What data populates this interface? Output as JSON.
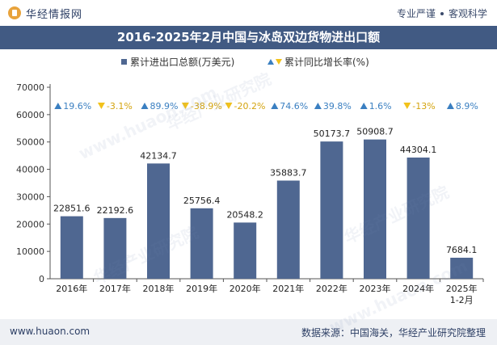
{
  "header": {
    "brand": "华经情报网",
    "tagline_1": "专业严谨",
    "tagline_2": "客观科学"
  },
  "title": "2016-2025年2月中国与冰岛双边货物进出口额",
  "legend": {
    "bar_label": "累计进出口总额(万美元)",
    "line_label": "累计同比增长率(%)"
  },
  "colors": {
    "bar": "#4f6791",
    "up": "#3a7fc1",
    "down": "#f2c21b",
    "title_bg": "#415a83"
  },
  "chart_data": {
    "type": "bar",
    "title": "2016-2025年2月中国与冰岛双边货物进出口额",
    "categories": [
      "2016年",
      "2017年",
      "2018年",
      "2019年",
      "2020年",
      "2021年",
      "2022年",
      "2023年",
      "2024年",
      "2025年\n1-2月"
    ],
    "series": [
      {
        "name": "累计进出口总额(万美元)",
        "values": [
          22851.6,
          22192.6,
          42134.7,
          25756.4,
          20548.2,
          35883.7,
          50173.7,
          50908.7,
          44304.1,
          7684.1
        ],
        "value_labels": [
          "22851.6",
          "22192.6",
          "42134.7",
          "25756.4",
          "20548.2",
          "35883.7",
          "50173.7",
          "50908.7",
          "44304.1",
          "7684.1"
        ]
      },
      {
        "name": "累计同比增长率(%)",
        "values": [
          19.6,
          -3.1,
          89.9,
          -38.9,
          -20.2,
          74.6,
          39.8,
          1.6,
          -13,
          8.9
        ],
        "value_labels": [
          "19.6%",
          "-3.1%",
          "89.9%",
          "-38.9%",
          "-20.2%",
          "74.6%",
          "39.8%",
          "1.6%",
          "-13%",
          "8.9%"
        ]
      }
    ],
    "ylim": [
      0,
      70000
    ],
    "yticks": [
      "0",
      "10000",
      "20000",
      "30000",
      "40000",
      "50000",
      "60000",
      "70000"
    ],
    "grid": false,
    "legend_position": "top-center"
  },
  "footer": {
    "website": "www.huaon.com",
    "source": "数据来源：中国海关，华经产业研究院整理"
  },
  "watermarks": [
    "华经产业研究院",
    "www.huaon.com"
  ]
}
